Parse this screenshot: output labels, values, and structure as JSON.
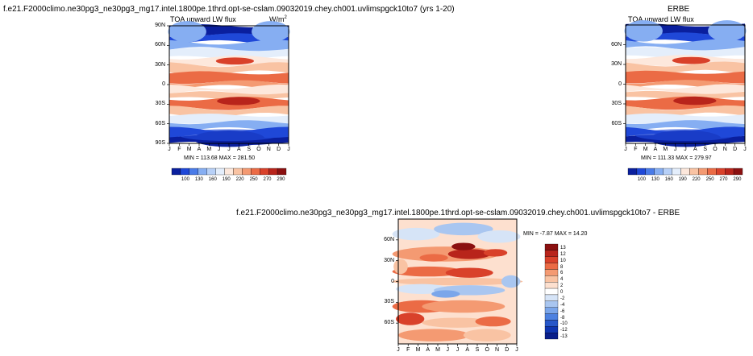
{
  "panels": {
    "model": {
      "title": "f.e21.F2000climo.ne30pg3_ne30pg3_mg17.intel.1800pe.1thrd.opt-se-cslam.09032019.chey.ch001.uvlimspgck10to7 (yrs 1-20)",
      "variable_label": "TOA upward LW flux",
      "units": "W/m",
      "units_sup": "2",
      "minmax": "MIN = 113.68 MAX = 281.50"
    },
    "obs": {
      "title": "ERBE",
      "variable_label": "TOA upward LW flux",
      "minmax": "MIN = 111.33 MAX = 279.97"
    },
    "diff": {
      "title": "f.e21.F2000climo.ne30pg3_ne30pg3_mg17.intel.1800pe.1thrd.opt-se-cslam.09032019.chey.ch001.uvlimspgck10to7 - ERBE",
      "minmax": "MIN = -7.87 MAX = 14.20"
    }
  },
  "chart_data": [
    {
      "type": "heatmap",
      "title": "TOA upward LW flux (model, yrs 1-20)",
      "units": "W/m2",
      "x": [
        "J",
        "F",
        "M",
        "A",
        "M",
        "J",
        "J",
        "A",
        "S",
        "O",
        "N",
        "D",
        "J"
      ],
      "y_ticks": [
        "90N",
        "60N",
        "30N",
        "0",
        "30S",
        "60S",
        "90S"
      ],
      "ylim": [
        -90,
        90
      ],
      "min": 113.68,
      "max": 281.5,
      "colorbar_levels": [
        "100",
        "130",
        "160",
        "190",
        "220",
        "250",
        "270",
        "290"
      ]
    },
    {
      "type": "heatmap",
      "title": "TOA upward LW flux (ERBE)",
      "units": "W/m2",
      "x": [
        "J",
        "F",
        "M",
        "A",
        "M",
        "J",
        "J",
        "A",
        "S",
        "O",
        "N",
        "D",
        "J"
      ],
      "y_ticks": [
        "60N",
        "30N",
        "0",
        "30S",
        "60S"
      ],
      "ylim": [
        -90,
        90
      ],
      "min": 111.33,
      "max": 279.97,
      "colorbar_levels": [
        "100",
        "130",
        "160",
        "190",
        "220",
        "250",
        "270",
        "290"
      ]
    },
    {
      "type": "heatmap",
      "title": "Model - ERBE",
      "x": [
        "J",
        "F",
        "M",
        "A",
        "M",
        "J",
        "J",
        "A",
        "S",
        "O",
        "N",
        "D",
        "J"
      ],
      "y_ticks": [
        "60N",
        "30N",
        "0",
        "30S",
        "60S"
      ],
      "ylim": [
        -90,
        90
      ],
      "min": -7.87,
      "max": 14.2,
      "colorbar_levels": [
        "13",
        "12",
        "10",
        "8",
        "6",
        "4",
        "2",
        "0",
        "-2",
        "-4",
        "-6",
        "-8",
        "-10",
        "-12",
        "-13"
      ]
    }
  ],
  "colors": {
    "abs_scale": [
      "#0a1f9e",
      "#1f48d8",
      "#4a7be8",
      "#86aef2",
      "#b7d0f7",
      "#e4eefb",
      "#fde8dc",
      "#f9c3a3",
      "#f49a72",
      "#eb6b45",
      "#d9412a",
      "#b8241b",
      "#8b1010"
    ],
    "diff_scale": [
      "#8b1010",
      "#b8241b",
      "#d9412a",
      "#eb6b45",
      "#f49a72",
      "#f9c3a3",
      "#fde0cf",
      "#ffffff",
      "#d6e4f7",
      "#a9c6f0",
      "#7ba6ea",
      "#4d81e0",
      "#2757c9",
      "#0f35b0",
      "#0a1f8a"
    ]
  }
}
